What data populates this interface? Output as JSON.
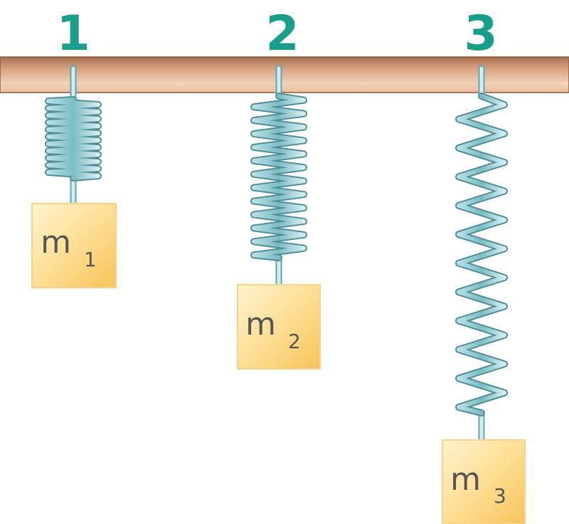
{
  "colors": {
    "label": "#1a9e8c",
    "bar_light": "#f2d2b8",
    "bar_dark": "#b87d5d",
    "spring_light": "#d2ecef",
    "spring_dark": "#5fa7b0",
    "block_light": "#fff0c6",
    "block_dark": "#f9c85e"
  },
  "springs": [
    {
      "label": "1",
      "mass": "m",
      "subscript": "1"
    },
    {
      "label": "2",
      "mass": "m",
      "subscript": "2"
    },
    {
      "label": "3",
      "mass": "m",
      "subscript": "3"
    }
  ]
}
